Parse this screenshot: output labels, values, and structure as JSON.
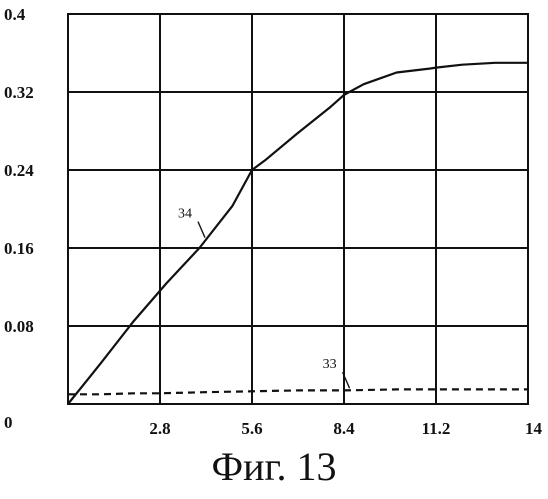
{
  "caption": "Фиг. 13",
  "chart_data": {
    "type": "line",
    "title": "",
    "xlabel": "",
    "ylabel": "",
    "xlim": [
      0,
      14
    ],
    "ylim": [
      0,
      0.4
    ],
    "x_ticks": [
      0,
      2.8,
      5.6,
      8.4,
      11.2,
      14
    ],
    "x_tick_labels": [
      "0",
      "2.8",
      "5.6",
      "8.4",
      "11.2",
      "14"
    ],
    "y_ticks": [
      0,
      0.08,
      0.16,
      0.24,
      0.32,
      0.4
    ],
    "y_tick_labels": [
      "0",
      "0.08",
      "0.16",
      "0.24",
      "0.32",
      "0.4"
    ],
    "grid": true,
    "series": [
      {
        "name": "34",
        "style": "solid",
        "x": [
          0,
          1,
          2,
          3,
          4,
          5,
          5.6,
          6,
          7,
          8,
          8.4,
          9,
          10,
          11,
          11.2,
          12,
          13,
          14
        ],
        "y": [
          0.0,
          0.042,
          0.085,
          0.124,
          0.16,
          0.203,
          0.24,
          0.25,
          0.278,
          0.305,
          0.317,
          0.328,
          0.34,
          0.344,
          0.345,
          0.348,
          0.35,
          0.35
        ]
      },
      {
        "name": "33",
        "style": "dashed",
        "x": [
          0,
          1,
          2,
          2.8,
          4,
          5.6,
          7,
          8.4,
          10,
          11.2,
          12,
          14
        ],
        "y": [
          0.01,
          0.01,
          0.011,
          0.011,
          0.012,
          0.013,
          0.014,
          0.014,
          0.015,
          0.015,
          0.015,
          0.015
        ]
      }
    ],
    "annotations": [
      {
        "text": "34",
        "series": "34",
        "at_x": 4.2
      },
      {
        "text": "33",
        "series": "33",
        "at_x": 8.6
      }
    ]
  }
}
